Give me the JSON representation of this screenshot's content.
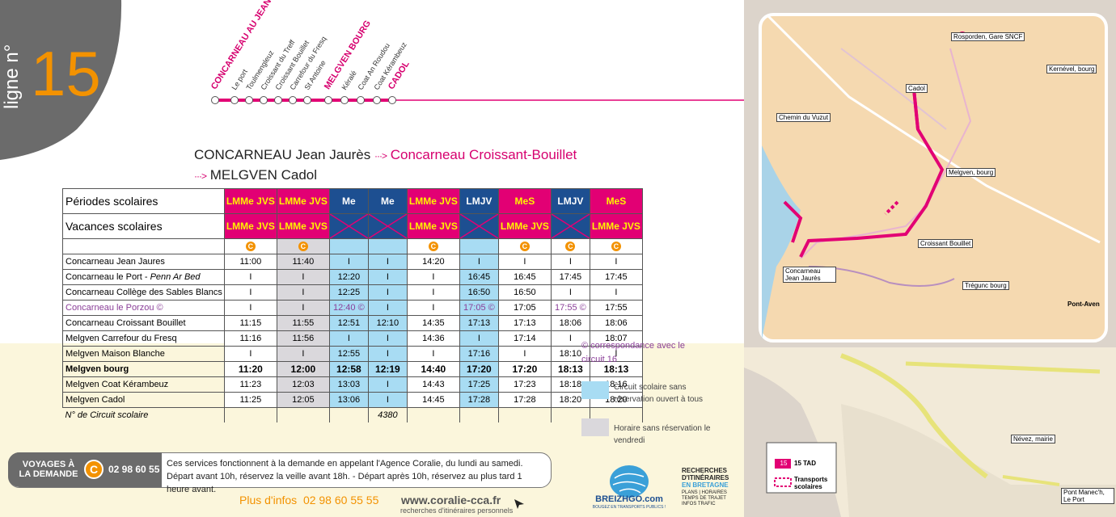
{
  "line": {
    "label": "ligne n°",
    "number": "15"
  },
  "stops": [
    {
      "name": "CONCARNEAU AU JEAN JAURÈS",
      "major": true
    },
    {
      "name": "Le port",
      "major": false
    },
    {
      "name": "Toulmengleuz",
      "major": false
    },
    {
      "name": "Croissant du Treff",
      "major": false
    },
    {
      "name": "Croissant Bouillet",
      "major": false
    },
    {
      "name": "Carrefour du Fresq",
      "major": false
    },
    {
      "name": "St Antoine",
      "major": false
    },
    {
      "name": "MELGVEN BOURG",
      "major": true
    },
    {
      "name": "Kéralé",
      "major": false
    },
    {
      "name": "Coat An Roudou",
      "major": false
    },
    {
      "name": "Coat Kérambeuz",
      "major": false
    },
    {
      "name": "CADOL",
      "major": true
    }
  ],
  "route_title": {
    "line1_a": "CONCARNEAU Jean Jaurès",
    "line1_arrow": "···>",
    "line1_b": "Concarneau Croissant-Bouillet",
    "line2_arrow": "···>",
    "line2_b": "MELGVEN Cadol"
  },
  "table": {
    "row_periodes_label": "Périodes scolaires",
    "row_vacances_label": "Vacances scolaires",
    "periodes": [
      "LMMe JVS",
      "LMMe JVS",
      "Me",
      "Me",
      "LMMe JVS",
      "LMJV",
      "MeS",
      "LMJV",
      "MeS"
    ],
    "vacances": [
      "LMMe JVS",
      "LMMe JVS",
      "",
      "",
      "LMMe JVS",
      "",
      "LMMe JVS",
      "",
      "LMMe JVS"
    ],
    "rows": [
      {
        "stop": "Concarneau Jean Jaures",
        "times": [
          "11:00",
          "11:40",
          "I",
          "I",
          "14:20",
          "I",
          "I",
          "I",
          "I"
        ]
      },
      {
        "stop": "Concarneau le Port - ",
        "stop_em": "Penn Ar Bed",
        "times": [
          "I",
          "I",
          "12:20",
          "I",
          "I",
          "16:45",
          "16:45",
          "17:45",
          "17:45"
        ]
      },
      {
        "stop": "Concarneau Collège des Sables Blancs",
        "times": [
          "I",
          "I",
          "12:25",
          "I",
          "I",
          "16:50",
          "16:50",
          "I",
          "I"
        ]
      },
      {
        "stop": "Concarneau le Porzou ©",
        "times": [
          "I",
          "I",
          "12:40 ©",
          "I",
          "I",
          "17:05 ©",
          "17:05",
          "17:55 ©",
          "17:55"
        ]
      },
      {
        "stop": "Concarneau Croissant Bouillet",
        "times": [
          "11:15",
          "11:55",
          "12:51",
          "12:10",
          "14:35",
          "17:13",
          "17:13",
          "18:06",
          "18:06"
        ]
      },
      {
        "stop": "Melgven Carrefour du Fresq",
        "times": [
          "11:16",
          "11:56",
          "I",
          "I",
          "14:36",
          "I",
          "17:14",
          "I",
          "18:07"
        ]
      },
      {
        "stop": "Melgven Maison Blanche",
        "times": [
          "I",
          "I",
          "12:55",
          "I",
          "I",
          "17:16",
          "I",
          "18:10",
          "I"
        ]
      },
      {
        "stop": "Melgven bourg",
        "times": [
          "11:20",
          "12:00",
          "12:58",
          "12:19",
          "14:40",
          "17:20",
          "17:20",
          "18:13",
          "18:13"
        ]
      },
      {
        "stop": "Melgven Coat Kérambeuz",
        "times": [
          "11:23",
          "12:03",
          "13:03",
          "I",
          "14:43",
          "17:25",
          "17:23",
          "18:18",
          "18:16"
        ]
      },
      {
        "stop": "Melgven Cadol",
        "times": [
          "11:25",
          "12:05",
          "13:06",
          "I",
          "14:45",
          "17:28",
          "17:28",
          "18:20",
          "18:20"
        ]
      }
    ],
    "circuit_label": "N° de Circuit scolaire",
    "circuit_values": [
      "",
      "",
      "",
      "4380",
      "",
      "",
      "",
      "",
      ""
    ]
  },
  "legend": {
    "correspondance": "© correspondance avec le circuit 16",
    "blue": "Circuit scolaire sans réservation ouvert à tous",
    "grey": "Horaire sans réservation le vendredi"
  },
  "info": {
    "vad_line1": "VOYAGES À",
    "vad_line2": "LA DEMANDE",
    "phone": "02 98 60 55 55",
    "text1": "Ces services fonctionnent à la demande en appelant l'Agence Coralie, du lundi au samedi.",
    "text2": "Départ avant 10h, réservez la veille avant 18h. - Départ après 10h, réservez au plus tard 1 heure avant."
  },
  "footer": {
    "plus_label": "Plus d'infos",
    "plus_phone": "02 98 60 55 55",
    "site": "www.coralie-cca.fr",
    "site_sub": "recherches d'itinéraires personnels",
    "breizh": "BREIZHGO.com",
    "breizh_sub": "BOUGEZ EN TRANSPORTS PUBLICS !",
    "rech1": "RECHERCHES",
    "rech2": "D'ITINÉRAIRES",
    "rech3": "EN BRETAGNE",
    "rech4": "PLANS | HORAIRES",
    "rech5": "TEMPS DE TRAJET",
    "rech6": "INFOS TRAFIC"
  },
  "map": {
    "labels": {
      "rosporden": "Rosporden, Gare SNCF",
      "cadol": "Cadol",
      "chemin": "Chemin du Vuzut",
      "melgven": "Melgven, bourg",
      "croissant": "Croissant Bouillet",
      "concarneau": "Concarneau Jean Jaurès",
      "tregunc": "Trégunc bourg",
      "kernevel": "Kernével, bourg",
      "pont_aven": "Pont-Aven",
      "nevez": "Névez, mairie",
      "pont_manec": "Pont Manec'h, Le Port"
    },
    "legend_tad_num": "15",
    "legend_tad": "15 TAD",
    "legend_scol": "Transports scolaires"
  },
  "colors": {
    "pink": "#e20074",
    "navy": "#1d4f91",
    "light_blue": "#a8dcf3",
    "grey": "#dad8dc",
    "orange": "#f39200",
    "purple": "#8a3e98"
  }
}
